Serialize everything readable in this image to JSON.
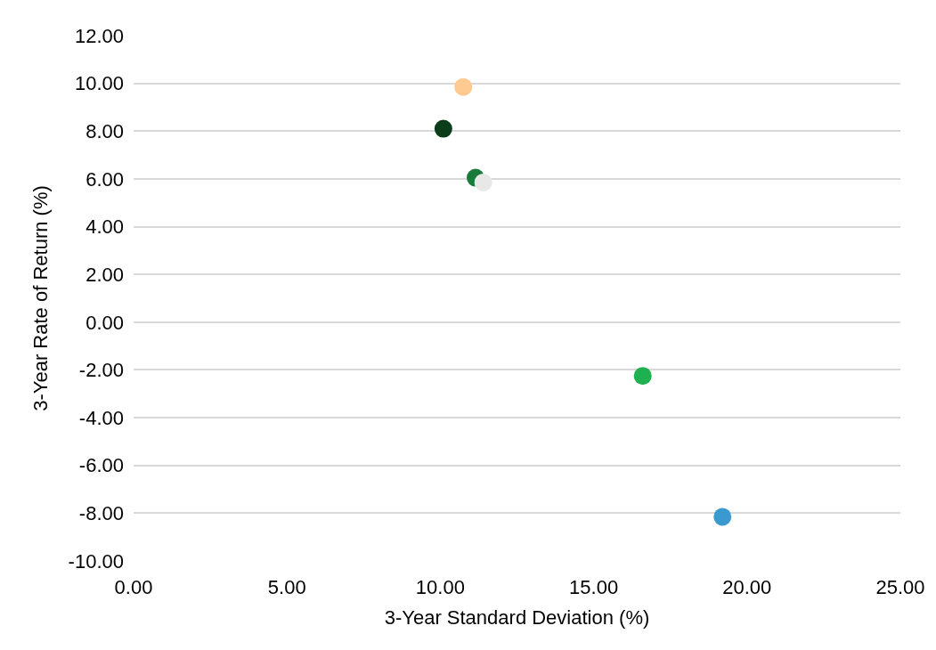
{
  "chart_data": {
    "type": "scatter",
    "xlabel": "3-Year Standard Deviation (%)",
    "ylabel": "3-Year Rate of Return (%)",
    "x": [
      10.75,
      10.1,
      11.15,
      11.4,
      16.6,
      19.2
    ],
    "values": [
      9.85,
      8.1,
      6.05,
      5.85,
      -2.25,
      -8.15
    ],
    "colors": [
      "#ffc992",
      "#0b3d1b",
      "#1a7a3a",
      "#e8e8e8",
      "#1fb050",
      "#3a9ad0"
    ],
    "xlim": [
      0,
      25
    ],
    "xticks": [
      {
        "value": 0,
        "label": "0.00"
      },
      {
        "value": 5,
        "label": "5.00"
      },
      {
        "value": 10,
        "label": "10.00"
      },
      {
        "value": 15,
        "label": "15.00"
      },
      {
        "value": 20,
        "label": "20.00"
      },
      {
        "value": 25,
        "label": "25.00"
      }
    ],
    "ylim": [
      -10,
      12
    ],
    "yticks": [
      {
        "value": -10,
        "label": "-10.00"
      },
      {
        "value": -8,
        "label": "-8.00"
      },
      {
        "value": -6,
        "label": "-6.00"
      },
      {
        "value": -4,
        "label": "-4.00"
      },
      {
        "value": -2,
        "label": "-2.00"
      },
      {
        "value": 0,
        "label": "0.00"
      },
      {
        "value": 2,
        "label": "2.00"
      },
      {
        "value": 4,
        "label": "4.00"
      },
      {
        "value": 6,
        "label": "6.00"
      },
      {
        "value": 8,
        "label": "8.00"
      },
      {
        "value": 10,
        "label": "10.00"
      },
      {
        "value": 12,
        "label": "12.00"
      }
    ],
    "grid": "y",
    "marker": "circle"
  }
}
